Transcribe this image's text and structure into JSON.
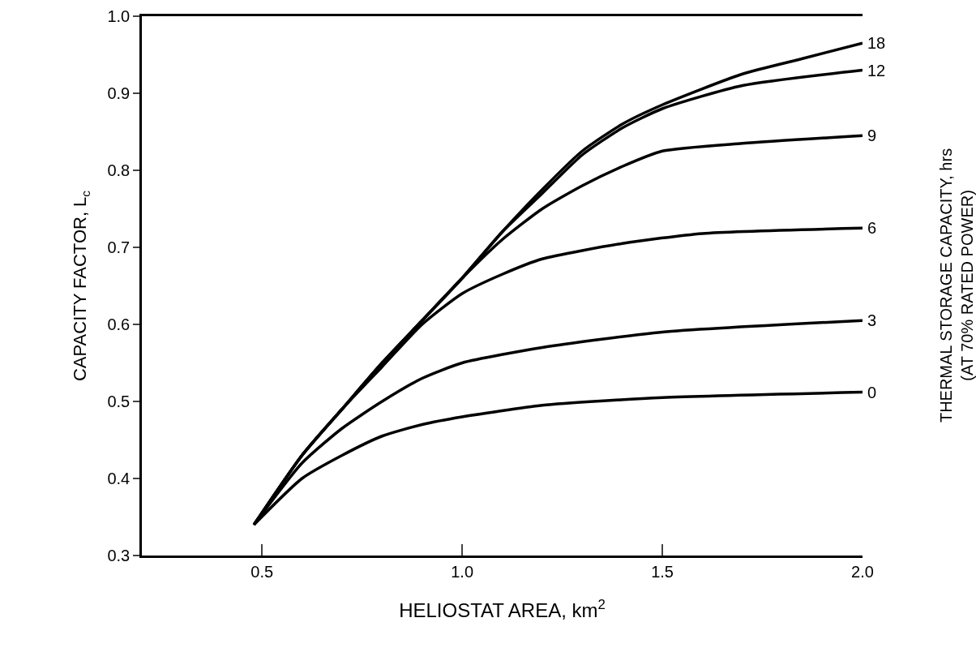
{
  "chart_data": {
    "type": "line",
    "xlabel": "HELIOSTAT AREA, km$^{2}$",
    "ylabel": "CAPACITY FACTOR, L$_{c}$",
    "y2label": "THERMAL STORAGE CAPACITY, hrs\n(AT 70% RATED POWER)",
    "xlim": [
      0.2,
      2.0
    ],
    "xticks": [
      {
        "value": 0.5,
        "label": "0.5"
      },
      {
        "value": 1.0,
        "label": "1.0"
      },
      {
        "value": 1.5,
        "label": "1.5"
      },
      {
        "value": 2.0,
        "label": "2.0"
      }
    ],
    "ylim": [
      0.3,
      1.0
    ],
    "yticks": [
      {
        "value": 0.3,
        "label": "0.3"
      },
      {
        "value": 0.4,
        "label": "0.4"
      },
      {
        "value": 0.5,
        "label": "0.5"
      },
      {
        "value": 0.6,
        "label": "0.6"
      },
      {
        "value": 0.7,
        "label": "0.7"
      },
      {
        "value": 0.8,
        "label": "0.8"
      },
      {
        "value": 0.9,
        "label": "0.9"
      },
      {
        "value": 1.0,
        "label": "1.0"
      }
    ],
    "grid": false,
    "legend": false,
    "marker": "none",
    "line_style": "solid",
    "series": [
      {
        "name": "18",
        "color": "#000000",
        "x": [
          0.48,
          0.6,
          0.7,
          0.8,
          0.9,
          1.0,
          1.1,
          1.2,
          1.3,
          1.4,
          1.5,
          1.7,
          1.85,
          2.0
        ],
        "values": [
          0.34,
          0.43,
          0.49,
          0.55,
          0.605,
          0.66,
          0.72,
          0.775,
          0.825,
          0.86,
          0.885,
          0.925,
          0.945,
          0.965
        ]
      },
      {
        "name": "12",
        "color": "#000000",
        "x": [
          0.48,
          0.6,
          0.7,
          0.8,
          0.9,
          1.0,
          1.1,
          1.2,
          1.3,
          1.4,
          1.5,
          1.7,
          2.0
        ],
        "values": [
          0.34,
          0.43,
          0.49,
          0.55,
          0.605,
          0.66,
          0.72,
          0.77,
          0.82,
          0.855,
          0.88,
          0.91,
          0.93
        ]
      },
      {
        "name": "9",
        "color": "#000000",
        "x": [
          0.48,
          0.6,
          0.7,
          0.8,
          0.9,
          1.0,
          1.1,
          1.2,
          1.3,
          1.4,
          1.5,
          1.7,
          2.0
        ],
        "values": [
          0.34,
          0.43,
          0.49,
          0.55,
          0.605,
          0.66,
          0.71,
          0.75,
          0.78,
          0.805,
          0.825,
          0.835,
          0.845
        ]
      },
      {
        "name": "6",
        "color": "#000000",
        "x": [
          0.48,
          0.6,
          0.7,
          0.8,
          0.9,
          1.0,
          1.1,
          1.2,
          1.4,
          1.6,
          2.0
        ],
        "values": [
          0.34,
          0.43,
          0.49,
          0.545,
          0.6,
          0.64,
          0.665,
          0.685,
          0.705,
          0.718,
          0.725
        ]
      },
      {
        "name": "3",
        "color": "#000000",
        "x": [
          0.48,
          0.6,
          0.7,
          0.8,
          0.9,
          1.0,
          1.2,
          1.5,
          2.0
        ],
        "values": [
          0.34,
          0.42,
          0.465,
          0.5,
          0.53,
          0.55,
          0.57,
          0.59,
          0.605
        ]
      },
      {
        "name": "0",
        "color": "#000000",
        "x": [
          0.48,
          0.6,
          0.7,
          0.8,
          0.9,
          1.0,
          1.2,
          1.5,
          2.0
        ],
        "values": [
          0.34,
          0.4,
          0.43,
          0.455,
          0.47,
          0.48,
          0.495,
          0.505,
          0.512
        ]
      }
    ]
  }
}
